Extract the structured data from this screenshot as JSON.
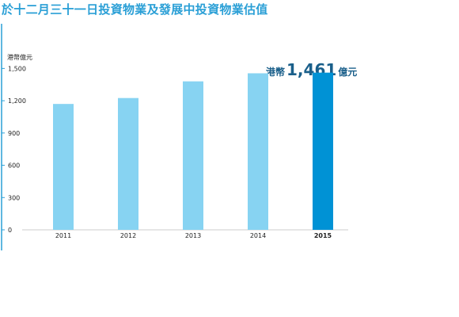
{
  "title": "於十二月三十一日投資物業及發展中投資物業估值",
  "chart_data": {
    "type": "bar",
    "ylabel": "港幣億元",
    "categories": [
      "2011",
      "2012",
      "2013",
      "2014",
      "2015"
    ],
    "values": [
      1170,
      1225,
      1380,
      1455,
      1461
    ],
    "ylim": [
      0,
      1650
    ],
    "yticks": [
      0,
      300,
      600,
      900,
      1200,
      1500
    ],
    "ytick_labels": [
      "0",
      "300",
      "600",
      "900",
      "1,200",
      "1,500"
    ],
    "grid": false,
    "highlight_category": "2015",
    "colors": {
      "bar": "#87d3f2",
      "highlight": "#0092d5",
      "axis": "#2a9fd6",
      "title": "#2a9fd6"
    }
  },
  "callout": {
    "prefix": "港幣",
    "value": "1,461",
    "suffix": "億元"
  }
}
